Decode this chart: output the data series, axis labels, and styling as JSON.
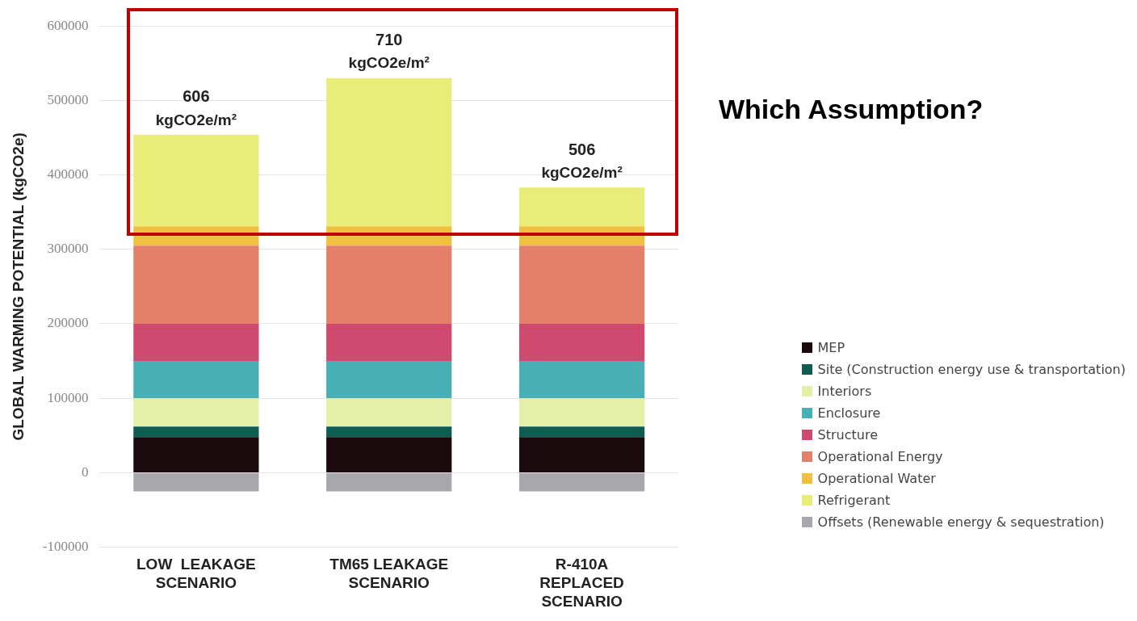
{
  "chart_data": {
    "type": "bar",
    "stacked": true,
    "categories": [
      "LOW  LEAKAGE\nSCENARIO",
      "TM65 LEAKAGE\nSCENARIO",
      "R-410A\nREPLACED\nSCENARIO"
    ],
    "ylabel": "GLOBAL WARMING POTENTIAL (kgCO2e)",
    "ylim": [
      -100000,
      600000
    ],
    "yticks": [
      -100000,
      0,
      100000,
      200000,
      300000,
      400000,
      500000,
      600000
    ],
    "grid": "y",
    "legend": "right",
    "series": [
      {
        "name": "MEP",
        "color": "#1a0a0e",
        "values": [
          48000,
          48000,
          48000
        ]
      },
      {
        "name": "Site (Construction energy use & transportation)",
        "color": "#0f5c50",
        "values": [
          14000,
          14000,
          14000
        ]
      },
      {
        "name": "Interiors",
        "color": "#e4f0a8",
        "values": [
          38000,
          38000,
          38000
        ]
      },
      {
        "name": "Enclosure",
        "color": "#48b0b4",
        "values": [
          50000,
          50000,
          50000
        ]
      },
      {
        "name": "Structure",
        "color": "#d04a70",
        "values": [
          50000,
          50000,
          50000
        ]
      },
      {
        "name": "Operational Energy",
        "color": "#e4806a",
        "values": [
          105000,
          105000,
          105000
        ]
      },
      {
        "name": "Operational Water",
        "color": "#f0c040",
        "values": [
          26000,
          26000,
          26000
        ]
      },
      {
        "name": "Refrigerant",
        "color": "#e8ec78",
        "values": [
          123000,
          199000,
          52000
        ]
      },
      {
        "name": "Offsets (Renewable energy & sequestration)",
        "color": "#a8a8ac",
        "values": [
          -25000,
          -25000,
          -25000
        ]
      }
    ],
    "annotations": [
      {
        "text": "606\nkgCO2e/m²",
        "x": "LOW  LEAKAGE\nSCENARIO",
        "y": 454000
      },
      {
        "text": "710\nkgCO2e/m²",
        "x": "TM65 LEAKAGE\nSCENARIO",
        "y": 530000
      },
      {
        "text": "506\nkgCO2e/m²",
        "x": "R-410A\nREPLACED\nSCENARIO",
        "y": 383000
      },
      "Which Assumption?"
    ]
  }
}
